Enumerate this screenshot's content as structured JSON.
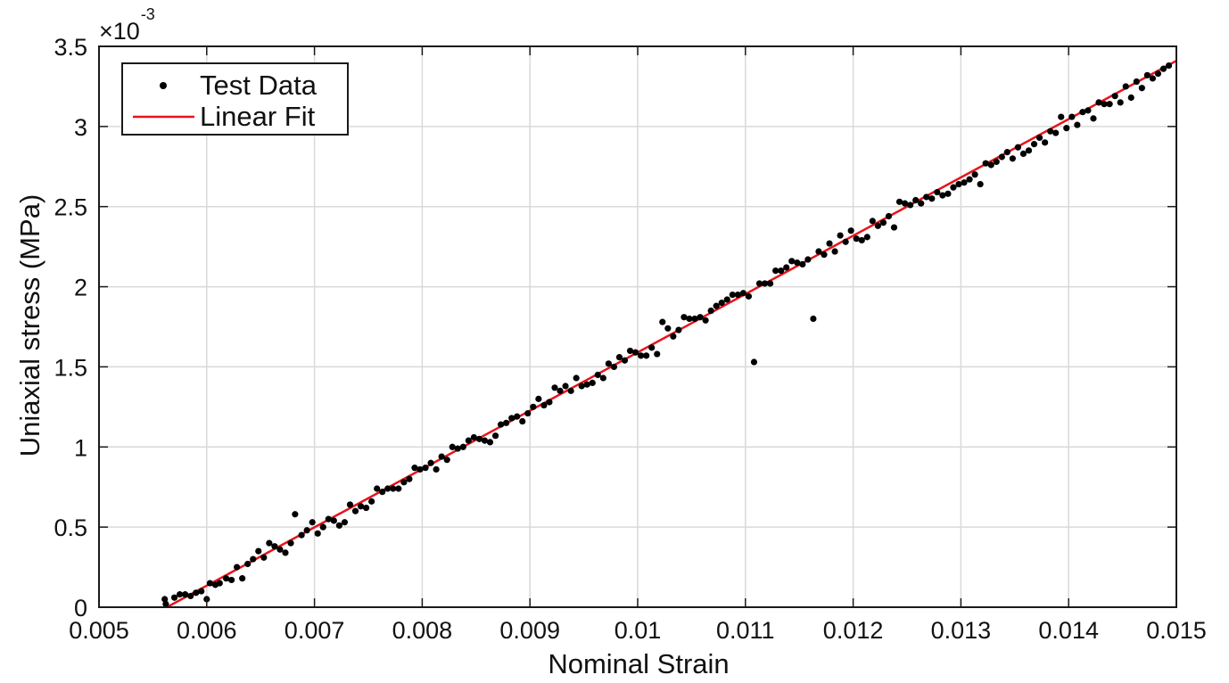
{
  "chart_data": {
    "type": "scatter",
    "xlabel": "Nominal Strain",
    "ylabel": "Uniaxial stress (MPa)",
    "y_exponent_base": "×10",
    "y_exponent_power": "-3",
    "xlim": [
      0.005,
      0.015
    ],
    "ylim": [
      0,
      3.5
    ],
    "x_ticks": [
      "0.005",
      "0.006",
      "0.007",
      "0.008",
      "0.009",
      "0.01",
      "0.011",
      "0.012",
      "0.013",
      "0.014",
      "0.015"
    ],
    "x_tick_values": [
      0.005,
      0.006,
      0.007,
      0.008,
      0.009,
      0.01,
      0.011,
      0.012,
      0.013,
      0.014,
      0.015
    ],
    "y_ticks": [
      "0",
      "0.5",
      "1",
      "1.5",
      "2",
      "2.5",
      "3",
      "3.5"
    ],
    "y_tick_values": [
      0,
      0.5,
      1,
      1.5,
      2,
      2.5,
      3,
      3.5
    ],
    "grid": true,
    "legend_position": "top-left",
    "colors": {
      "test_data": "#000000",
      "linear_fit": "#e8141b",
      "grid": "#d9d9d9",
      "axes": "#1a1a1a"
    },
    "series": [
      {
        "name": "Test Data",
        "kind": "scatter",
        "points": [
          [
            0.00561,
            0.05
          ],
          [
            0.00562,
            0.02
          ],
          [
            0.0057,
            0.06
          ],
          [
            0.00575,
            0.08
          ],
          [
            0.0058,
            0.08
          ],
          [
            0.00585,
            0.07
          ],
          [
            0.0059,
            0.09
          ],
          [
            0.00595,
            0.1
          ],
          [
            0.006,
            0.05
          ],
          [
            0.00603,
            0.15
          ],
          [
            0.00608,
            0.14
          ],
          [
            0.00612,
            0.15
          ],
          [
            0.00618,
            0.18
          ],
          [
            0.00623,
            0.17
          ],
          [
            0.00628,
            0.25
          ],
          [
            0.00633,
            0.18
          ],
          [
            0.00638,
            0.27
          ],
          [
            0.00643,
            0.3
          ],
          [
            0.00648,
            0.35
          ],
          [
            0.00653,
            0.31
          ],
          [
            0.00658,
            0.4
          ],
          [
            0.00663,
            0.38
          ],
          [
            0.00668,
            0.36
          ],
          [
            0.00673,
            0.34
          ],
          [
            0.00678,
            0.4
          ],
          [
            0.00682,
            0.58
          ],
          [
            0.00688,
            0.45
          ],
          [
            0.00693,
            0.48
          ],
          [
            0.00698,
            0.53
          ],
          [
            0.00703,
            0.46
          ],
          [
            0.00708,
            0.5
          ],
          [
            0.00713,
            0.55
          ],
          [
            0.00718,
            0.54
          ],
          [
            0.00723,
            0.51
          ],
          [
            0.00728,
            0.53
          ],
          [
            0.00733,
            0.64
          ],
          [
            0.00738,
            0.6
          ],
          [
            0.00743,
            0.63
          ],
          [
            0.00748,
            0.62
          ],
          [
            0.00753,
            0.66
          ],
          [
            0.00758,
            0.74
          ],
          [
            0.00763,
            0.72
          ],
          [
            0.00768,
            0.74
          ],
          [
            0.00773,
            0.74
          ],
          [
            0.00778,
            0.74
          ],
          [
            0.00783,
            0.78
          ],
          [
            0.00788,
            0.8
          ],
          [
            0.00793,
            0.87
          ],
          [
            0.00798,
            0.86
          ],
          [
            0.00803,
            0.87
          ],
          [
            0.00808,
            0.9
          ],
          [
            0.00813,
            0.86
          ],
          [
            0.00818,
            0.94
          ],
          [
            0.00823,
            0.92
          ],
          [
            0.00828,
            1.0
          ],
          [
            0.00833,
            0.99
          ],
          [
            0.00838,
            1.0
          ],
          [
            0.00843,
            1.04
          ],
          [
            0.00848,
            1.06
          ],
          [
            0.00853,
            1.05
          ],
          [
            0.00858,
            1.04
          ],
          [
            0.00863,
            1.03
          ],
          [
            0.00868,
            1.07
          ],
          [
            0.00873,
            1.14
          ],
          [
            0.00878,
            1.15
          ],
          [
            0.00883,
            1.18
          ],
          [
            0.00888,
            1.19
          ],
          [
            0.00893,
            1.16
          ],
          [
            0.00898,
            1.21
          ],
          [
            0.00903,
            1.25
          ],
          [
            0.00908,
            1.3
          ],
          [
            0.00913,
            1.26
          ],
          [
            0.00918,
            1.28
          ],
          [
            0.00923,
            1.37
          ],
          [
            0.00928,
            1.35
          ],
          [
            0.00933,
            1.38
          ],
          [
            0.00938,
            1.35
          ],
          [
            0.00943,
            1.43
          ],
          [
            0.00948,
            1.38
          ],
          [
            0.00953,
            1.39
          ],
          [
            0.00958,
            1.4
          ],
          [
            0.00963,
            1.45
          ],
          [
            0.00968,
            1.43
          ],
          [
            0.00973,
            1.52
          ],
          [
            0.00978,
            1.5
          ],
          [
            0.00983,
            1.56
          ],
          [
            0.00988,
            1.54
          ],
          [
            0.00993,
            1.6
          ],
          [
            0.00998,
            1.59
          ],
          [
            0.01003,
            1.57
          ],
          [
            0.01008,
            1.57
          ],
          [
            0.01013,
            1.62
          ],
          [
            0.01018,
            1.58
          ],
          [
            0.01023,
            1.78
          ],
          [
            0.01028,
            1.74
          ],
          [
            0.01033,
            1.69
          ],
          [
            0.01038,
            1.73
          ],
          [
            0.01043,
            1.81
          ],
          [
            0.01048,
            1.8
          ],
          [
            0.01053,
            1.8
          ],
          [
            0.01058,
            1.81
          ],
          [
            0.01063,
            1.79
          ],
          [
            0.01068,
            1.85
          ],
          [
            0.01073,
            1.88
          ],
          [
            0.01078,
            1.9
          ],
          [
            0.01083,
            1.92
          ],
          [
            0.01088,
            1.95
          ],
          [
            0.01093,
            1.95
          ],
          [
            0.01098,
            1.96
          ],
          [
            0.01103,
            1.94
          ],
          [
            0.01108,
            1.53
          ],
          [
            0.01113,
            2.02
          ],
          [
            0.01118,
            2.02
          ],
          [
            0.01123,
            2.02
          ],
          [
            0.01128,
            2.1
          ],
          [
            0.01133,
            2.1
          ],
          [
            0.01138,
            2.12
          ],
          [
            0.01143,
            2.16
          ],
          [
            0.01148,
            2.15
          ],
          [
            0.01153,
            2.14
          ],
          [
            0.01158,
            2.17
          ],
          [
            0.01163,
            1.8
          ],
          [
            0.01168,
            2.22
          ],
          [
            0.01173,
            2.2
          ],
          [
            0.01178,
            2.27
          ],
          [
            0.01183,
            2.22
          ],
          [
            0.01188,
            2.32
          ],
          [
            0.01193,
            2.28
          ],
          [
            0.01198,
            2.35
          ],
          [
            0.01203,
            2.3
          ],
          [
            0.01208,
            2.29
          ],
          [
            0.01213,
            2.31
          ],
          [
            0.01218,
            2.41
          ],
          [
            0.01223,
            2.38
          ],
          [
            0.01228,
            2.4
          ],
          [
            0.01233,
            2.44
          ],
          [
            0.01238,
            2.37
          ],
          [
            0.01243,
            2.53
          ],
          [
            0.01248,
            2.52
          ],
          [
            0.01253,
            2.51
          ],
          [
            0.01258,
            2.54
          ],
          [
            0.01263,
            2.52
          ],
          [
            0.01268,
            2.56
          ],
          [
            0.01273,
            2.55
          ],
          [
            0.01278,
            2.59
          ],
          [
            0.01283,
            2.57
          ],
          [
            0.01288,
            2.58
          ],
          [
            0.01293,
            2.62
          ],
          [
            0.01298,
            2.64
          ],
          [
            0.01303,
            2.65
          ],
          [
            0.01308,
            2.67
          ],
          [
            0.01313,
            2.7
          ],
          [
            0.01318,
            2.64
          ],
          [
            0.01323,
            2.77
          ],
          [
            0.01328,
            2.76
          ],
          [
            0.01333,
            2.78
          ],
          [
            0.01338,
            2.81
          ],
          [
            0.01343,
            2.84
          ],
          [
            0.01348,
            2.8
          ],
          [
            0.01353,
            2.87
          ],
          [
            0.01358,
            2.83
          ],
          [
            0.01363,
            2.85
          ],
          [
            0.01368,
            2.89
          ],
          [
            0.01373,
            2.93
          ],
          [
            0.01378,
            2.9
          ],
          [
            0.01383,
            2.97
          ],
          [
            0.01388,
            2.96
          ],
          [
            0.01393,
            3.06
          ],
          [
            0.01398,
            2.99
          ],
          [
            0.01403,
            3.06
          ],
          [
            0.01408,
            3.01
          ],
          [
            0.01413,
            3.09
          ],
          [
            0.01418,
            3.1
          ],
          [
            0.01423,
            3.05
          ],
          [
            0.01428,
            3.15
          ],
          [
            0.01433,
            3.14
          ],
          [
            0.01438,
            3.14
          ],
          [
            0.01443,
            3.19
          ],
          [
            0.01448,
            3.15
          ],
          [
            0.01453,
            3.25
          ],
          [
            0.01458,
            3.18
          ],
          [
            0.01463,
            3.28
          ],
          [
            0.01468,
            3.24
          ],
          [
            0.01473,
            3.32
          ],
          [
            0.01478,
            3.3
          ],
          [
            0.01483,
            3.33
          ],
          [
            0.01488,
            3.36
          ],
          [
            0.01493,
            3.38
          ]
        ]
      },
      {
        "name": "Linear Fit",
        "kind": "line",
        "points": [
          [
            0.00563,
            0.0
          ],
          [
            0.015,
            3.41
          ]
        ]
      }
    ]
  }
}
